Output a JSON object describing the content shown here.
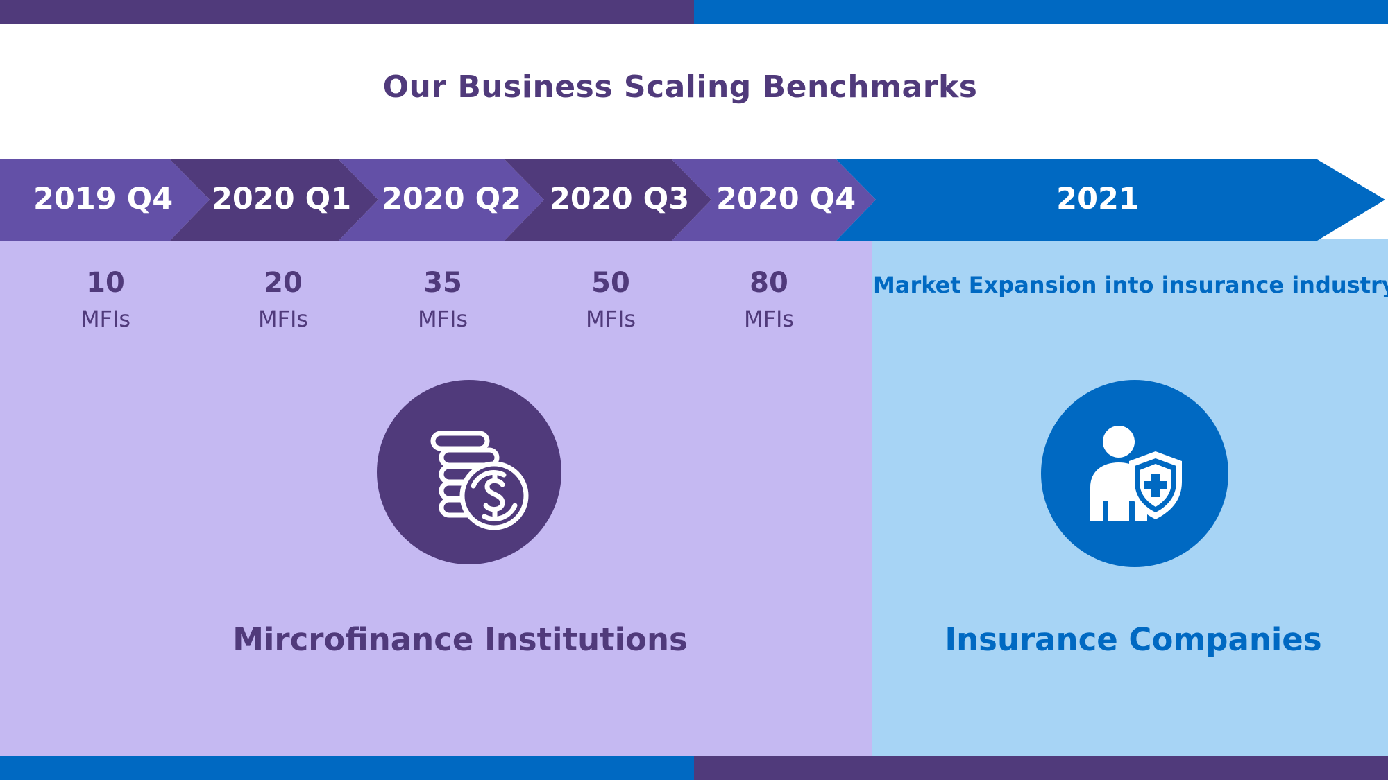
{
  "colors": {
    "purple_dark": "#503A7B",
    "purple_mid": "#6350A7",
    "purple_light_panel": "#C5B9F2",
    "blue": "#0069C2",
    "blue_light_panel": "#A7D4F5",
    "white": "#FFFFFF"
  },
  "title": "Our Business Scaling Benchmarks",
  "timeline": [
    {
      "label": "2019 Q4",
      "value": "10",
      "unit": "MFIs"
    },
    {
      "label": "2020 Q1",
      "value": "20",
      "unit": "MFIs"
    },
    {
      "label": "2020 Q2",
      "value": "35",
      "unit": "MFIs"
    },
    {
      "label": "2020 Q3",
      "value": "50",
      "unit": "MFIs"
    },
    {
      "label": "2020 Q4",
      "value": "80",
      "unit": "MFIs"
    }
  ],
  "future": {
    "label": "2021",
    "note": "Market Expansion into insurance industry"
  },
  "segments": {
    "mfi": {
      "caption": "Mircrofinance Institutions",
      "icon": "coins-dollar-icon"
    },
    "insurance": {
      "caption": "Insurance Companies",
      "icon": "person-shield-icon"
    }
  }
}
